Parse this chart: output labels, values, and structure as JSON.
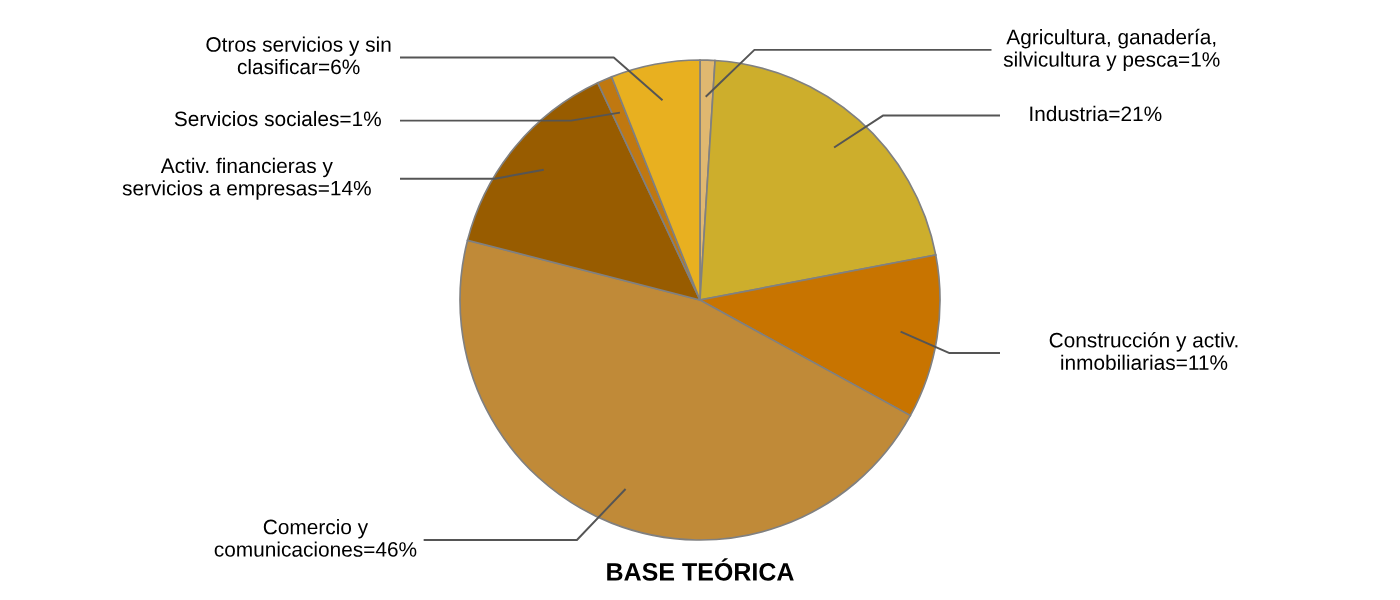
{
  "chart_data": {
    "type": "pie",
    "title": "BASE TEÓRICA",
    "categories": [
      "Agricultura, ganadería,\nsilvicultura y pesca",
      "Industria",
      "Construcción y activ.\ninmobiliarias",
      "Comercio y\ncomunicaciones",
      "Activ. financieras y\nservicios a empresas",
      "Servicios sociales",
      "Otros servicios y sin\nclasificar"
    ],
    "values": [
      1,
      21,
      11,
      46,
      14,
      1,
      6
    ],
    "value_labels": [
      "=1%",
      "=21%",
      "=11%",
      "=46%",
      "=14%",
      "=1%",
      "=6%"
    ],
    "colors": [
      "#e0b870",
      "#cdae2c",
      "#c87400",
      "#c08a38",
      "#985c00",
      "#c07810",
      "#e8b020"
    ]
  }
}
